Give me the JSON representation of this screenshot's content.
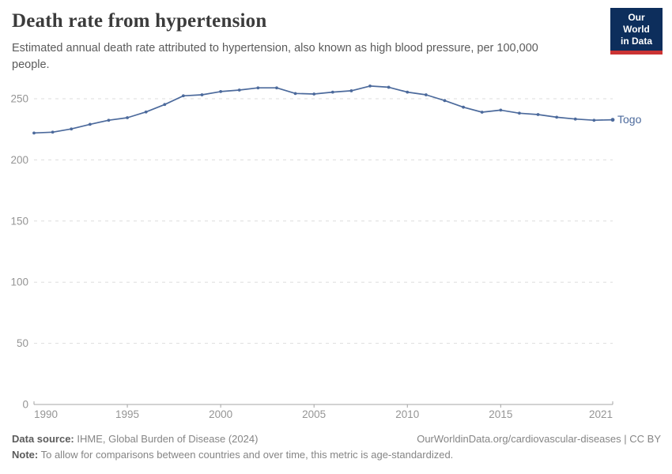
{
  "header": {
    "title": "Death rate from hypertension",
    "subtitle": "Estimated annual death rate attributed to hypertension, also known as high blood pressure, per 100,000 people.",
    "logo": {
      "line1": "Our World",
      "line2": "in Data"
    }
  },
  "chart_data": {
    "type": "line",
    "title": "Death rate from hypertension",
    "xlabel": "",
    "ylabel": "",
    "x": [
      1990,
      1991,
      1992,
      1993,
      1994,
      1995,
      1996,
      1997,
      1998,
      1999,
      2000,
      2001,
      2002,
      2003,
      2004,
      2005,
      2006,
      2007,
      2008,
      2009,
      2010,
      2011,
      2012,
      2013,
      2014,
      2015,
      2016,
      2017,
      2018,
      2019,
      2020,
      2021
    ],
    "series": [
      {
        "name": "Togo",
        "color": "#4C6A9C",
        "values": [
          222.0,
          222.7,
          225.3,
          229.1,
          232.4,
          234.5,
          239.2,
          245.3,
          252.4,
          253.2,
          255.9,
          257.1,
          258.9,
          258.9,
          254.3,
          253.9,
          255.4,
          256.5,
          260.4,
          259.4,
          255.4,
          253.2,
          248.5,
          243.1,
          239.0,
          240.7,
          238.2,
          237.1,
          234.9,
          233.4,
          232.4,
          232.8
        ]
      }
    ],
    "x_ticks": [
      1990,
      1995,
      2000,
      2005,
      2010,
      2015,
      2021
    ],
    "y_ticks": [
      0,
      50,
      100,
      150,
      200,
      250
    ],
    "xlim": [
      1990,
      2021
    ],
    "ylim": [
      0,
      250
    ],
    "grid": "horizontal-dashed",
    "legend": "end-of-line-label",
    "label_togo": "Togo"
  },
  "footer": {
    "source_label": "Data source:",
    "source_value": "IHME, Global Burden of Disease (2024)",
    "attribution_link": "OurWorldinData.org/cardiovascular-diseases",
    "attribution_license": "| CC BY",
    "note_label": "Note:",
    "note_value": "To allow for comparisons between countries and over time, this metric is age-standardized."
  },
  "colors": {
    "line": "#4C6A9C",
    "title_text": "#3b3b3b",
    "subtitle_text": "#5b5b5b",
    "gridline": "#dddddd",
    "axis": "#a5a5a5",
    "tick_label": "#959595",
    "logo_bg": "#0d2e5c",
    "logo_stripe": "#cb3434"
  }
}
